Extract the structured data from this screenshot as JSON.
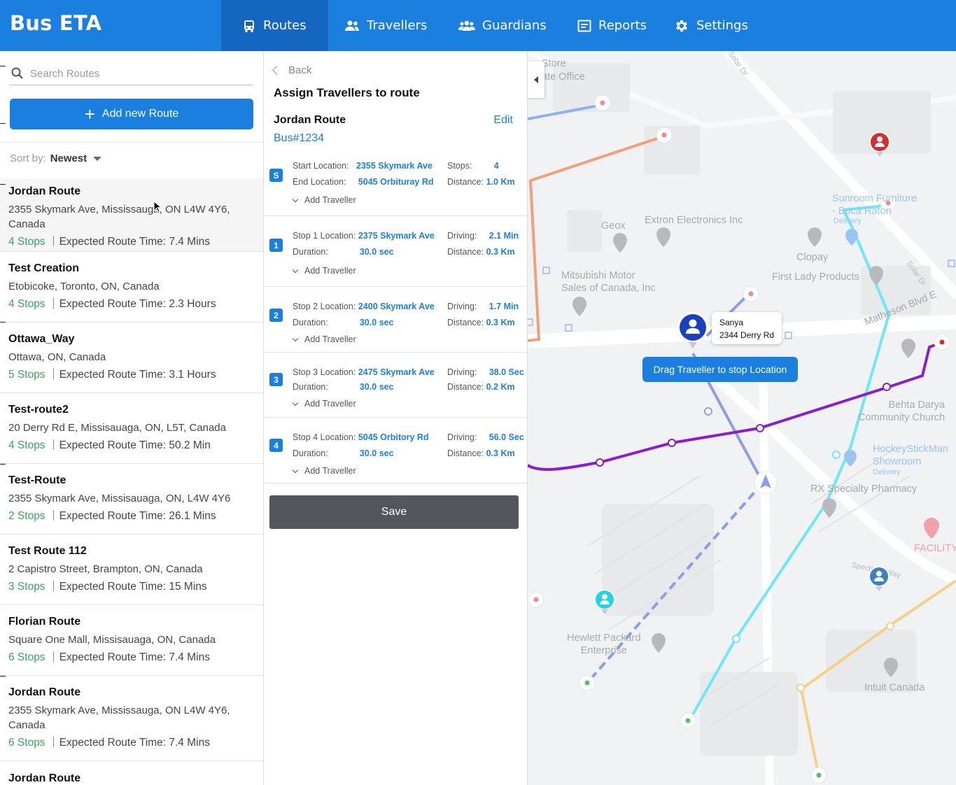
{
  "app": {
    "title": "Bus ETA"
  },
  "nav": [
    {
      "label": "Routes",
      "icon": "bus-icon",
      "active": true
    },
    {
      "label": "Travellers",
      "icon": "people-icon"
    },
    {
      "label": "Guardians",
      "icon": "group-icon"
    },
    {
      "label": "Reports",
      "icon": "report-icon"
    },
    {
      "label": "Settings",
      "icon": "gear-icon"
    }
  ],
  "sidebar": {
    "search_placeholder": "Search Routes",
    "add_button": "Add new Route",
    "sort_label": "Sort by:",
    "sort_value": "Newest",
    "routes": [
      {
        "title": "Jordan Route",
        "address": "2355 Skymark Ave, Mississauga, ON L4W 4Y6, Canada",
        "stops": "4 Stops",
        "time": "Expected Route Time: 7.4 Mins"
      },
      {
        "title": "Test Creation",
        "address": "Etobicoke, Toronto, ON, Canada",
        "stops": "4 Stops",
        "time": "Expected Route Time: 2.3 Hours"
      },
      {
        "title": "Ottawa_Way",
        "address": "Ottawa, ON, Canada",
        "stops": "5 Stops",
        "time": "Expected Route Time: 3.1 Hours"
      },
      {
        "title": "Test-route2",
        "address": "20 Derry Rd E, Missisauaga, ON, L5T, Canada",
        "stops": "4 Stops",
        "time": "Expected Route Time: 50.2 Min"
      },
      {
        "title": "Test-Route",
        "address": "2355 Skymark Ave, Missisauaga, ON, L4W 4Y6",
        "stops": "2 Stops",
        "time": "Expected Route Time: 26.1 Mins"
      },
      {
        "title": "Test Route 112",
        "address": "2 Capistro Street, Brampton, ON, Canada",
        "stops": "3 Stops",
        "time": "Expected Route Time: 15 Mins"
      },
      {
        "title": "Florian Route",
        "address": "Square One Mall, Missisauaga, ON, Canada",
        "stops": "6 Stops",
        "time": "Expected Route Time: 7.4 Mins"
      },
      {
        "title": "Jordan Route",
        "address": "2355 Skymark Ave, Mississauga, ON L4W 4Y6, Canada",
        "stops": "6 Stops",
        "time": "Expected Route Time: 7.4 Mins"
      },
      {
        "title": "Jordan Route",
        "address": "",
        "stops": "",
        "time": ""
      }
    ]
  },
  "detail": {
    "back": "Back",
    "heading": "Assign Travellers to route",
    "route_name": "Jordan Route",
    "edit": "Edit",
    "bus": "Bus#1234",
    "add_traveller": "Add Traveller",
    "save": "Save",
    "start": {
      "badge": "S",
      "start_label": "Start Location:",
      "start_value": "2355 Skymark Ave",
      "end_label": "End Location:",
      "end_value": "5045 Orbituray Rd",
      "stops_label": "Stops:",
      "stops_value": "4",
      "distance_label": "Distance:",
      "distance_value": "1.0 Km"
    },
    "stops": [
      {
        "badge": "1",
        "loc_label": "Stop 1 Location:",
        "loc_value": "2375 Skymark Ave",
        "dur_label": "Duration:",
        "dur_value": "30.0 sec",
        "drv_label": "Driving:",
        "drv_value": "2.1 Min",
        "dist_label": "Distance:",
        "dist_value": "0.3 Km"
      },
      {
        "badge": "2",
        "loc_label": "Stop 2 Location:",
        "loc_value": "2400 Skymark Ave",
        "dur_label": "Duration:",
        "dur_value": "30.0 sec",
        "drv_label": "Driving:",
        "drv_value": "1.7 Min",
        "dist_label": "Distance:",
        "dist_value": "0.3 Km"
      },
      {
        "badge": "3",
        "loc_label": "Stop 3 Location:",
        "loc_value": "2475 Skymark Ave",
        "dur_label": "Duration:",
        "dur_value": "30.0 sec",
        "drv_label": "Driving:",
        "drv_value": "38.0 Sec",
        "dist_label": "Distance:",
        "dist_value": "0.2 Km"
      },
      {
        "badge": "4",
        "loc_label": "Stop 4 Location:",
        "loc_value": "5045 Orbitory Rd",
        "dur_label": "Duration:",
        "dur_value": "30.0 sec",
        "drv_label": "Driving:",
        "drv_value": "56.0 Sec",
        "dist_label": "Distance:",
        "dist_value": "0.3 Km"
      }
    ]
  },
  "map": {
    "traveller_name": "Sanya",
    "traveller_address": "2344 Derry Rd",
    "drag_tip": "Drag Traveller to stop Location",
    "labels": {
      "store_office": "Store\nate Office",
      "geox": "Geox",
      "extron": "Extron Electronics Inc",
      "clopay": "Clopay",
      "first_lady": "First Lady Products",
      "mitsubishi": "Mitsubishi Motor\nSales of Canada, Inc",
      "sunroom": "Sunroom Furniture\n- Boca Raton",
      "delivery": "Delivery",
      "matheson": "Matheson Blvd E",
      "solar_dr": "Solar Dr",
      "behta": "Behta Darya\nCommunity Church",
      "hockey": "HockeyStickMan\nShowroom",
      "rx": "RX Specialty Pharmacy",
      "facility": "FACILITY",
      "spectrum": "Spectrum Way",
      "hp": "Hewlett Packard\nEnterprise",
      "intuit": "Intuit Canada"
    },
    "colors": {
      "purple_route": "#8a1fc9",
      "cyan_route": "#6ee7f7",
      "blue_route": "#8b9ee6",
      "orange_route": "#f0a07a",
      "yellow_route": "#f3d08b",
      "accent": "#1b7fe0"
    }
  }
}
